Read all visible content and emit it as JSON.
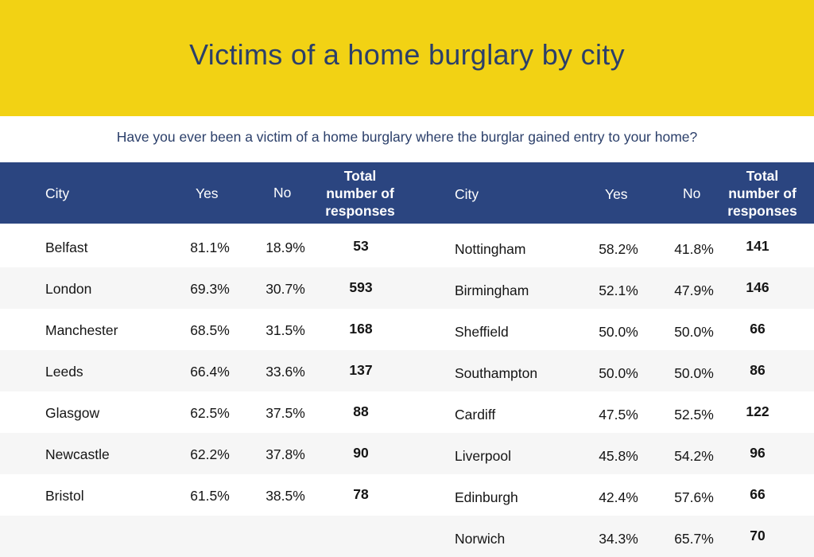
{
  "title": "Victims of a home burglary by city",
  "subtitle": "Have you ever been a victim of a home burglary where the burglar gained entry to your home?",
  "colors": {
    "banner": "#f2d214",
    "header": "#2b4580",
    "title_text": "#2b3f6a",
    "row_alt": "#f6f6f6"
  },
  "chart_data": {
    "type": "table",
    "title": "Victims of a home burglary by city",
    "subtitle": "Have you ever been a victim of a home burglary where the burglar gained entry to your home?",
    "headers": [
      "City",
      "Yes",
      "No",
      "Total number of responses"
    ],
    "header_lines": {
      "city": "City",
      "yes": "Yes",
      "no": "No",
      "total": [
        "Total",
        "number of",
        "responses"
      ]
    },
    "left": [
      {
        "city": "Belfast",
        "yes": "81.1%",
        "no": "18.9%",
        "total": "53"
      },
      {
        "city": "London",
        "yes": "69.3%",
        "no": "30.7%",
        "total": "593"
      },
      {
        "city": "Manchester",
        "yes": "68.5%",
        "no": "31.5%",
        "total": "168"
      },
      {
        "city": "Leeds",
        "yes": "66.4%",
        "no": "33.6%",
        "total": "137"
      },
      {
        "city": "Glasgow",
        "yes": "62.5%",
        "no": "37.5%",
        "total": "88"
      },
      {
        "city": "Newcastle",
        "yes": "62.2%",
        "no": "37.8%",
        "total": "90"
      },
      {
        "city": "Bristol",
        "yes": "61.5%",
        "no": "38.5%",
        "total": "78"
      }
    ],
    "right": [
      {
        "city": "Nottingham",
        "yes": "58.2%",
        "no": "41.8%",
        "total": "141"
      },
      {
        "city": "Birmingham",
        "yes": "52.1%",
        "no": "47.9%",
        "total": "146"
      },
      {
        "city": "Sheffield",
        "yes": "50.0%",
        "no": "50.0%",
        "total": "66"
      },
      {
        "city": "Southampton",
        "yes": "50.0%",
        "no": "50.0%",
        "total": "86"
      },
      {
        "city": "Cardiff",
        "yes": "47.5%",
        "no": "52.5%",
        "total": "122"
      },
      {
        "city": "Liverpool",
        "yes": "45.8%",
        "no": "54.2%",
        "total": "96"
      },
      {
        "city": "Edinburgh",
        "yes": "42.4%",
        "no": "57.6%",
        "total": "66"
      },
      {
        "city": "Norwich",
        "yes": "34.3%",
        "no": "65.7%",
        "total": "70"
      }
    ]
  }
}
